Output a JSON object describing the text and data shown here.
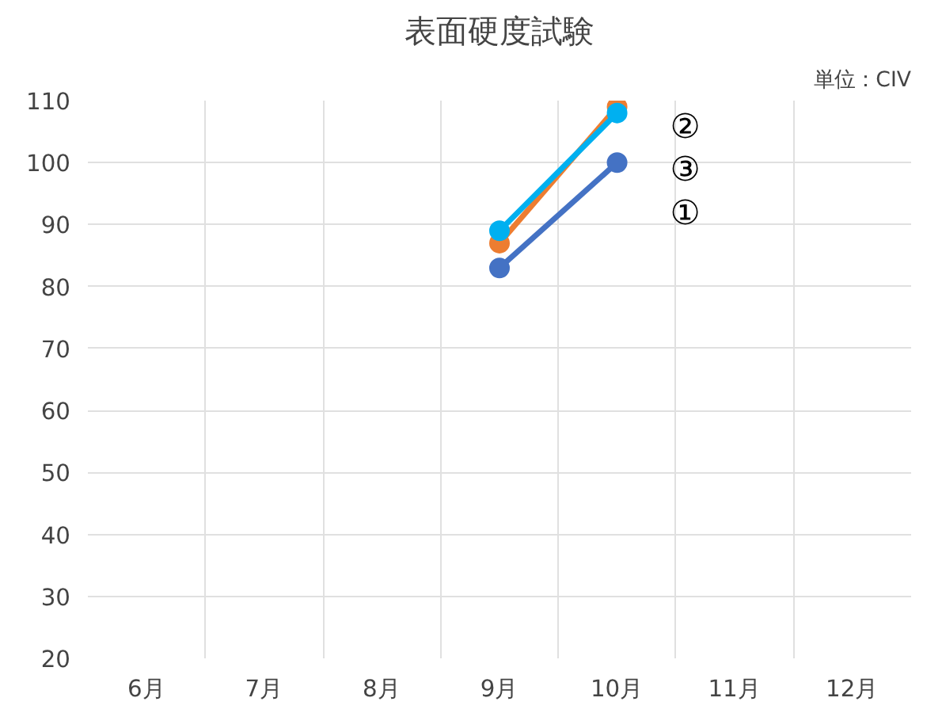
{
  "chart_data": {
    "type": "line",
    "title": "表面硬度試験",
    "annotations": [
      "単位：CIV"
    ],
    "categories": [
      "6月",
      "7月",
      "8月",
      "9月",
      "10月",
      "11月",
      "12月"
    ],
    "series": [
      {
        "name": "①",
        "color": "#4472c4",
        "values": [
          null,
          null,
          null,
          83,
          100,
          null,
          null
        ]
      },
      {
        "name": "②",
        "color": "#ed7d31",
        "values": [
          null,
          null,
          null,
          87,
          109,
          null,
          null
        ]
      },
      {
        "name": "③",
        "color": "#00b0f0",
        "values": [
          null,
          null,
          null,
          89,
          108,
          null,
          null
        ]
      }
    ],
    "ylim": [
      20,
      110
    ],
    "yticks": [
      20,
      30,
      40,
      50,
      60,
      70,
      80,
      90,
      100,
      110
    ],
    "grid": true,
    "marker": "circle",
    "line_style": "solid"
  }
}
